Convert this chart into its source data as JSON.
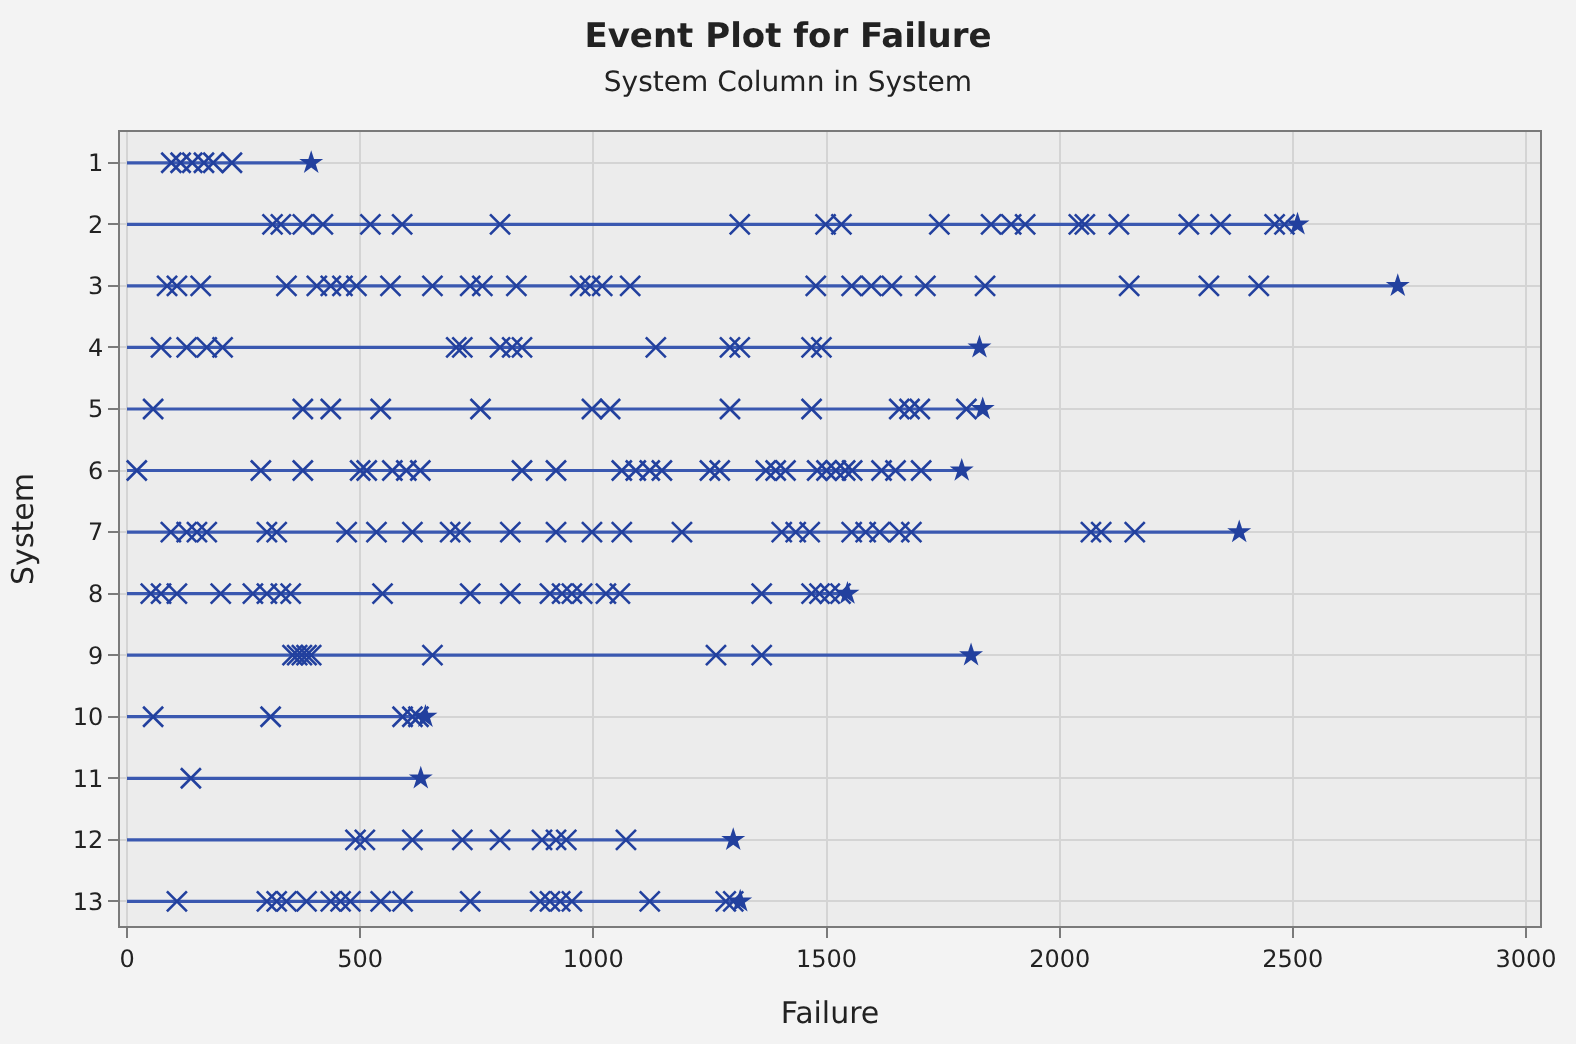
{
  "chart_data": {
    "type": "scatter",
    "title": "Event Plot for Failure",
    "subtitle": "System Column in System",
    "xlabel": "Failure",
    "ylabel": "System",
    "xlim": [
      -15,
      3030
    ],
    "xticks": [
      0,
      500,
      1000,
      1500,
      2000,
      2500,
      3000
    ],
    "ylim": [
      13.4,
      0.5
    ],
    "yticks": [
      1,
      2,
      3,
      4,
      5,
      6,
      7,
      8,
      9,
      10,
      11,
      12,
      13
    ],
    "grid": true,
    "series": [
      {
        "type": "line",
        "marker": "none",
        "color": "#3a58b0",
        "x": [
          0,
          395
        ],
        "values": [
          1,
          1
        ]
      },
      {
        "type": "line",
        "marker": "none",
        "color": "#3a58b0",
        "x": [
          0,
          2510
        ],
        "values": [
          2,
          2
        ]
      },
      {
        "type": "line",
        "marker": "none",
        "color": "#3a58b0",
        "x": [
          0,
          2725
        ],
        "values": [
          3,
          3
        ]
      },
      {
        "type": "line",
        "marker": "none",
        "color": "#3a58b0",
        "x": [
          0,
          1828
        ],
        "values": [
          4,
          4
        ]
      },
      {
        "type": "line",
        "marker": "none",
        "color": "#3a58b0",
        "x": [
          0,
          1835
        ],
        "values": [
          5,
          5
        ]
      },
      {
        "type": "line",
        "marker": "none",
        "color": "#3a58b0",
        "x": [
          0,
          1790
        ],
        "values": [
          6,
          6
        ]
      },
      {
        "type": "line",
        "marker": "none",
        "color": "#3a58b0",
        "x": [
          0,
          2385
        ],
        "values": [
          7,
          7
        ]
      },
      {
        "type": "line",
        "marker": "none",
        "color": "#3a58b0",
        "x": [
          0,
          1545
        ],
        "values": [
          8,
          8
        ]
      },
      {
        "type": "line",
        "marker": "none",
        "color": "#3a58b0",
        "x": [
          0,
          1810
        ],
        "values": [
          9,
          9
        ]
      },
      {
        "type": "line",
        "marker": "none",
        "color": "#3a58b0",
        "x": [
          0,
          640
        ],
        "values": [
          10,
          10
        ]
      },
      {
        "type": "line",
        "marker": "none",
        "color": "#3a58b0",
        "x": [
          0,
          630
        ],
        "values": [
          11,
          11
        ]
      },
      {
        "type": "line",
        "marker": "none",
        "color": "#3a58b0",
        "x": [
          0,
          1300
        ],
        "values": [
          12,
          12
        ]
      },
      {
        "type": "line",
        "marker": "none",
        "color": "#3a58b0",
        "x": [
          0,
          1315
        ],
        "values": [
          13,
          13
        ]
      },
      {
        "marker": "cross",
        "color": "#22409e",
        "x": [
          95,
          115,
          140,
          165,
          185,
          225
        ],
        "values": [
          1,
          1,
          1,
          1,
          1,
          1
        ]
      },
      {
        "marker": "cross",
        "color": "#22409e",
        "x": [
          312,
          330,
          377,
          420,
          522,
          590,
          800,
          1314,
          1498,
          1532,
          1742,
          1853,
          1896,
          1926,
          2041,
          2054,
          2127,
          2277,
          2345,
          2461,
          2482
        ],
        "values": [
          2,
          2,
          2,
          2,
          2,
          2,
          2,
          2,
          2,
          2,
          2,
          2,
          2,
          2,
          2,
          2,
          2,
          2,
          2,
          2,
          2
        ]
      },
      {
        "marker": "cross",
        "color": "#22409e",
        "x": [
          86,
          107,
          158,
          342,
          407,
          437,
          462,
          492,
          565,
          655,
          736,
          762,
          835,
          972,
          993,
          1019,
          1079,
          1477,
          1554,
          1596,
          1640,
          1712,
          1840,
          2149,
          2320,
          2427
        ],
        "values": [
          3,
          3,
          3,
          3,
          3,
          3,
          3,
          3,
          3,
          3,
          3,
          3,
          3,
          3,
          3,
          3,
          3,
          3,
          3,
          3,
          3,
          3,
          3,
          3,
          3,
          3
        ]
      },
      {
        "marker": "cross",
        "color": "#22409e",
        "x": [
          73,
          128,
          171,
          205,
          706,
          719,
          800,
          826,
          847,
          1134,
          1293,
          1314,
          1468,
          1489
        ],
        "values": [
          4,
          4,
          4,
          4,
          4,
          4,
          4,
          4,
          4,
          4,
          4,
          4,
          4,
          4
        ]
      },
      {
        "marker": "cross",
        "color": "#22409e",
        "x": [
          56,
          377,
          437,
          544,
          758,
          997,
          1036,
          1293,
          1468,
          1656,
          1678,
          1700,
          1800
        ],
        "values": [
          5,
          5,
          5,
          5,
          5,
          5,
          5,
          5,
          5,
          5,
          5,
          5,
          5
        ]
      },
      {
        "marker": "cross",
        "color": "#22409e",
        "x": [
          21,
          287,
          377,
          500,
          514,
          569,
          599,
          629,
          847,
          920,
          1061,
          1091,
          1121,
          1147,
          1250,
          1271,
          1370,
          1391,
          1412,
          1480,
          1500,
          1520,
          1540,
          1555,
          1618,
          1648,
          1703
        ],
        "values": [
          6,
          6,
          6,
          6,
          6,
          6,
          6,
          6,
          6,
          6,
          6,
          6,
          6,
          6,
          6,
          6,
          6,
          6,
          6,
          6,
          6,
          6,
          6,
          6,
          6,
          6,
          6
        ]
      },
      {
        "marker": "cross",
        "color": "#22409e",
        "x": [
          94,
          128,
          150,
          171,
          300,
          321,
          471,
          535,
          612,
          693,
          715,
          822,
          920,
          997,
          1061,
          1190,
          1404,
          1434,
          1464,
          1554,
          1584,
          1614,
          1656,
          1682,
          2067,
          2089,
          2161
        ],
        "values": [
          7,
          7,
          7,
          7,
          7,
          7,
          7,
          7,
          7,
          7,
          7,
          7,
          7,
          7,
          7,
          7,
          7,
          7,
          7,
          7,
          7,
          7,
          7,
          7,
          7,
          7,
          7
        ]
      },
      {
        "marker": "cross",
        "color": "#22409e",
        "x": [
          51,
          73,
          107,
          201,
          270,
          300,
          330,
          351,
          548,
          736,
          822,
          907,
          933,
          954,
          976,
          1027,
          1057,
          1361,
          1468,
          1485,
          1507,
          1530
        ],
        "values": [
          8,
          8,
          8,
          8,
          8,
          8,
          8,
          8,
          8,
          8,
          8,
          8,
          8,
          8,
          8,
          8,
          8,
          8,
          8,
          8,
          8,
          8
        ]
      },
      {
        "marker": "cross",
        "color": "#22409e",
        "x": [
          355,
          365,
          375,
          385,
          395,
          655,
          1263,
          1361
        ],
        "values": [
          9,
          9,
          9,
          9,
          9,
          9,
          9,
          9
        ]
      },
      {
        "marker": "cross",
        "color": "#22409e",
        "x": [
          56,
          308,
          591,
          612,
          625
        ],
        "values": [
          10,
          10,
          10,
          10,
          10
        ]
      },
      {
        "marker": "cross",
        "color": "#22409e",
        "x": [
          137
        ],
        "values": [
          11
        ]
      },
      {
        "marker": "cross",
        "color": "#22409e",
        "x": [
          490,
          510,
          612,
          719,
          800,
          890,
          920,
          942,
          1070
        ],
        "values": [
          12,
          12,
          12,
          12,
          12,
          12,
          12,
          12,
          12
        ]
      },
      {
        "marker": "cross",
        "color": "#22409e",
        "x": [
          107,
          300,
          321,
          342,
          385,
          437,
          458,
          479,
          544,
          591,
          736,
          886,
          907,
          929,
          954,
          1121,
          1284,
          1300
        ],
        "values": [
          13,
          13,
          13,
          13,
          13,
          13,
          13,
          13,
          13,
          13,
          13,
          13,
          13,
          13,
          13,
          13,
          13,
          13
        ]
      },
      {
        "marker": "star",
        "color": "#22409e",
        "x": [
          395,
          2510,
          2725,
          1828,
          1835,
          1790,
          2385,
          1545,
          1810,
          640,
          630,
          1300,
          1315
        ],
        "values": [
          1,
          2,
          3,
          4,
          5,
          6,
          7,
          8,
          9,
          10,
          11,
          12,
          13
        ]
      }
    ]
  }
}
